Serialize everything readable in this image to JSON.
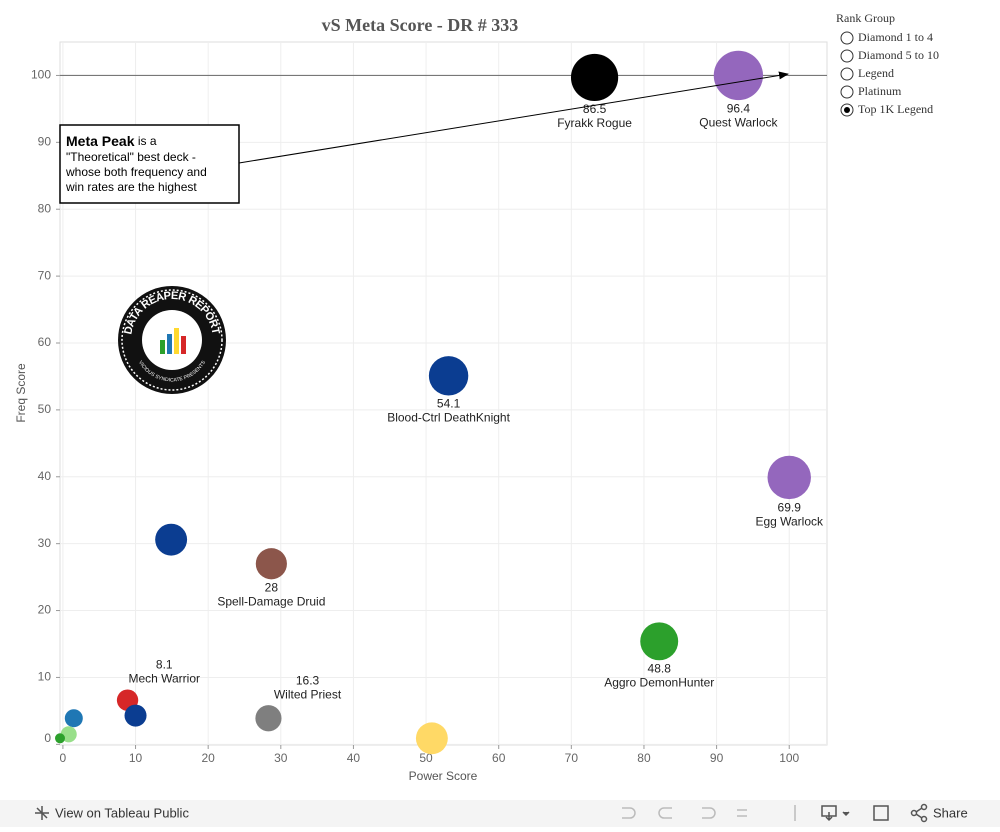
{
  "chart_data": {
    "type": "scatter",
    "title": "vS Meta Score - DR # 333",
    "xlabel": "Power Score",
    "ylabel": "Freq Score",
    "xlim": [
      -0.4,
      105.2
    ],
    "ylim": [
      -0.1,
      105.0
    ],
    "xticks": [
      0,
      10,
      20,
      30,
      40,
      50,
      60,
      70,
      80,
      90,
      100
    ],
    "yticks": [
      0,
      10,
      20,
      30,
      40,
      50,
      60,
      70,
      80,
      90,
      100
    ],
    "grid": true,
    "reference_line": 100,
    "points": [
      {
        "name": "Fyrakk Rogue",
        "x": 73.2,
        "y": 99.7,
        "size": 86.5,
        "color": "#000000"
      },
      {
        "name": "Quest Warlock",
        "x": 93.0,
        "y": 100,
        "size": 96.4,
        "color": "#9467bd"
      },
      {
        "name": "Blood-Ctrl DeathKnight",
        "x": 53.1,
        "y": 55.1,
        "size": 54.1,
        "color": "#0b3d91"
      },
      {
        "name": "Egg Warlock",
        "x": 100,
        "y": 39.9,
        "size": 69.9,
        "color": "#9467bd"
      },
      {
        "x": 14.9,
        "y": 30.6,
        "size": 30,
        "color": "#0b3d91"
      },
      {
        "name": "Spell-Damage Druid",
        "x": 28.7,
        "y": 27.0,
        "size": 28.0,
        "color": "#8c564b"
      },
      {
        "name": "Aggro DemonHunter",
        "x": 82.1,
        "y": 15.4,
        "size": 48.8,
        "color": "#2ca02c"
      },
      {
        "name": "Mech Warrior",
        "x": 8.9,
        "y": 6.6,
        "size": 8.1,
        "color": "#d62728",
        "label_position": "above-right"
      },
      {
        "x": 10.0,
        "y": 4.3,
        "size": 9,
        "color": "#0b3d91"
      },
      {
        "name": "Wilted Priest",
        "x": 28.3,
        "y": 3.9,
        "size": 16.3,
        "color": "#7f7f7f",
        "label_position": "above-right"
      },
      {
        "x": 1.5,
        "y": 3.9,
        "size": 4,
        "color": "#1f77b4"
      },
      {
        "x": 0.8,
        "y": 1.5,
        "size": 2.3,
        "color": "#98df8a"
      },
      {
        "x": -0.4,
        "y": 0.9,
        "size": 0,
        "color": "#2ca02c"
      },
      {
        "x": 50.8,
        "y": 0.9,
        "size": 30,
        "color": "#ffd966"
      }
    ],
    "annotation": {
      "bold": "Meta Peak",
      "lines": [
        "is a",
        "\"Theoretical\" best deck -",
        "whose both frequency and",
        "win rates are the highest"
      ]
    },
    "logo": {
      "text": "DATA REAPER REPORT",
      "subtext": "VICIOUS SYNDICATE PRESENTS"
    },
    "legend": {
      "title": "Rank Group",
      "items": [
        "Diamond 1 to 4",
        "Diamond 5 to 10",
        "Legend",
        "Platinum",
        "Top 1K Legend"
      ],
      "selected": 4
    }
  },
  "toolbar": {
    "link": "View on Tableau Public",
    "share": "Share"
  }
}
